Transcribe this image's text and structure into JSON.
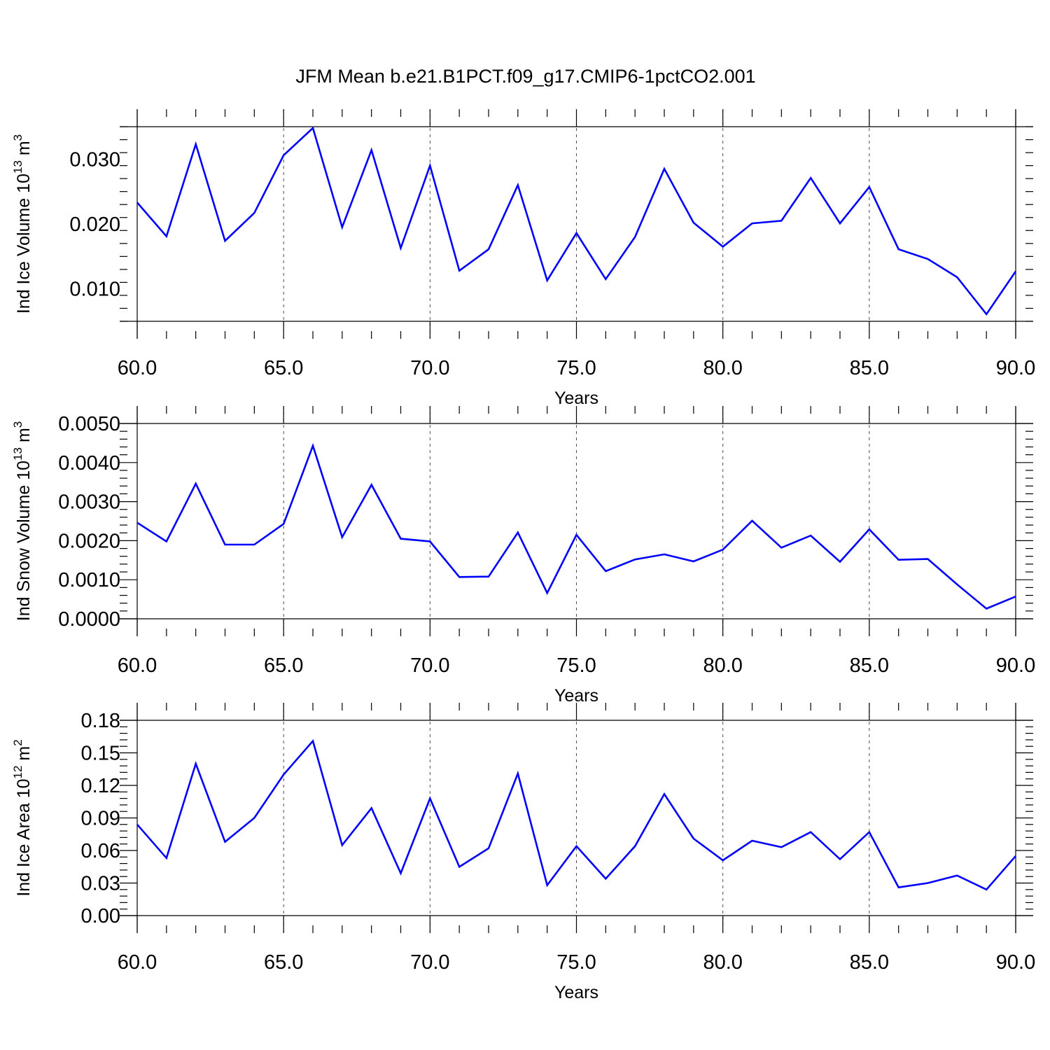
{
  "title": "JFM Mean b.e21.B1PCT.f09_g17.CMIP6-1pctCO2.001",
  "line_color": "#0000ff",
  "chart_data": [
    {
      "type": "line",
      "ylabel": "Ind Ice Volume 10",
      "ylabel_exp": "13",
      "ylabel_unit": " m",
      "ylabel_unit_exp": "3",
      "xlabel": "Years",
      "xlim": [
        60,
        90
      ],
      "ylim": [
        0.005,
        0.035
      ],
      "xticks": [
        60,
        65,
        70,
        75,
        80,
        85,
        90
      ],
      "xtick_labels": [
        "60.0",
        "65.0",
        "70.0",
        "75.0",
        "80.0",
        "85.0",
        "90.0"
      ],
      "yticks": [
        0.01,
        0.02,
        0.03
      ],
      "ytick_labels": [
        "0.010",
        "0.020",
        "0.030"
      ],
      "grid_x": [
        65,
        70,
        75,
        80,
        85
      ],
      "series": [
        {
          "name": "ice_volume",
          "x": [
            60,
            61,
            62,
            63,
            64,
            65,
            66,
            67,
            68,
            69,
            70,
            71,
            72,
            73,
            74,
            75,
            76,
            77,
            78,
            79,
            80,
            81,
            82,
            83,
            84,
            85,
            86,
            87,
            88,
            89,
            90
          ],
          "values": [
            0.0233,
            0.0181,
            0.0323,
            0.0174,
            0.0217,
            0.0306,
            0.0348,
            0.0195,
            0.0314,
            0.0163,
            0.029,
            0.0128,
            0.0161,
            0.026,
            0.0113,
            0.0186,
            0.0115,
            0.018,
            0.0285,
            0.0202,
            0.0165,
            0.0201,
            0.0205,
            0.0271,
            0.0201,
            0.0257,
            0.0161,
            0.0146,
            0.0118,
            0.0061,
            0.0127
          ]
        }
      ]
    },
    {
      "type": "line",
      "ylabel": "Ind Snow Volume 10",
      "ylabel_exp": "13",
      "ylabel_unit": " m",
      "ylabel_unit_exp": "3",
      "xlabel": "Years",
      "xlim": [
        60,
        90
      ],
      "ylim": [
        0.0,
        0.005
      ],
      "xticks": [
        60,
        65,
        70,
        75,
        80,
        85,
        90
      ],
      "xtick_labels": [
        "60.0",
        "65.0",
        "70.0",
        "75.0",
        "80.0",
        "85.0",
        "90.0"
      ],
      "yticks": [
        0.0,
        0.001,
        0.002,
        0.003,
        0.004,
        0.005
      ],
      "ytick_labels": [
        "0.0000",
        "0.0010",
        "0.0020",
        "0.0030",
        "0.0040",
        "0.0050"
      ],
      "grid_x": [
        65,
        70,
        75,
        80,
        85
      ],
      "series": [
        {
          "name": "snow_volume",
          "x": [
            60,
            61,
            62,
            63,
            64,
            65,
            66,
            67,
            68,
            69,
            70,
            71,
            72,
            73,
            74,
            75,
            76,
            77,
            78,
            79,
            80,
            81,
            82,
            83,
            84,
            85,
            86,
            87,
            88,
            89,
            90
          ],
          "values": [
            0.00246,
            0.00198,
            0.00346,
            0.0019,
            0.0019,
            0.00243,
            0.00443,
            0.00209,
            0.00343,
            0.00205,
            0.00198,
            0.00107,
            0.00108,
            0.00221,
            0.00066,
            0.00215,
            0.00122,
            0.00152,
            0.00165,
            0.00147,
            0.00177,
            0.00251,
            0.00182,
            0.00213,
            0.00146,
            0.00229,
            0.00151,
            0.00153,
            0.00088,
            0.00026,
            0.00057
          ]
        }
      ]
    },
    {
      "type": "line",
      "ylabel": "Ind Ice Area 10",
      "ylabel_exp": "12",
      "ylabel_unit": " m",
      "ylabel_unit_exp": "2",
      "xlabel": "Years",
      "xlim": [
        60,
        90
      ],
      "ylim": [
        0.0,
        0.18
      ],
      "xticks": [
        60,
        65,
        70,
        75,
        80,
        85,
        90
      ],
      "xtick_labels": [
        "60.0",
        "65.0",
        "70.0",
        "75.0",
        "80.0",
        "85.0",
        "90.0"
      ],
      "yticks": [
        0.0,
        0.03,
        0.06,
        0.09,
        0.12,
        0.15,
        0.18
      ],
      "ytick_labels": [
        "0.00",
        "0.03",
        "0.06",
        "0.09",
        "0.12",
        "0.15",
        "0.18"
      ],
      "grid_x": [
        65,
        70,
        75,
        80,
        85
      ],
      "series": [
        {
          "name": "ice_area",
          "x": [
            60,
            61,
            62,
            63,
            64,
            65,
            66,
            67,
            68,
            69,
            70,
            71,
            72,
            73,
            74,
            75,
            76,
            77,
            78,
            79,
            80,
            81,
            82,
            83,
            84,
            85,
            86,
            87,
            88,
            89,
            90
          ],
          "values": [
            0.084,
            0.053,
            0.14,
            0.068,
            0.09,
            0.13,
            0.161,
            0.065,
            0.099,
            0.039,
            0.108,
            0.045,
            0.062,
            0.131,
            0.028,
            0.064,
            0.034,
            0.064,
            0.112,
            0.071,
            0.051,
            0.069,
            0.063,
            0.077,
            0.052,
            0.077,
            0.026,
            0.03,
            0.037,
            0.024,
            0.055
          ]
        }
      ]
    }
  ]
}
